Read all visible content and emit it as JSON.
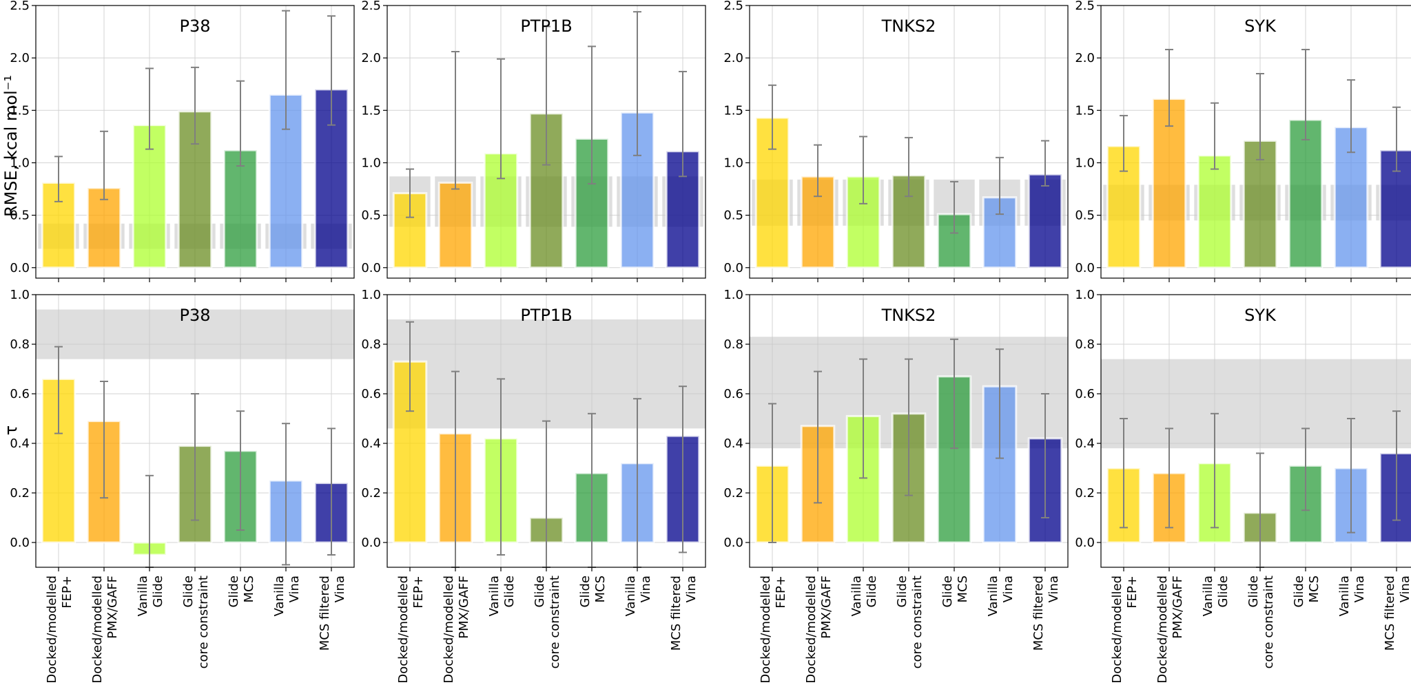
{
  "figure": {
    "ylabel_top": "RMSE, kcal mol⁻¹",
    "ylabel_bottom": "τ"
  },
  "methods": [
    {
      "line1": "Docked/modelled",
      "line2": "FEP+",
      "color": "#FFD700"
    },
    {
      "line1": "Docked/modelled",
      "line2": "PMX/GAFF",
      "color": "#FFA500"
    },
    {
      "line1": "Vanilla",
      "line2": "Glide",
      "color": "#ADFF2F"
    },
    {
      "line1": "Glide",
      "line2": "core constraint",
      "color": "#6B8E23"
    },
    {
      "line1": "Glide",
      "line2": "MCS",
      "color": "#2E9E3E"
    },
    {
      "line1": "Vanilla",
      "line2": "Vina",
      "color": "#6495ED"
    },
    {
      "line1": "MCS filtered",
      "line2": "Vina",
      "color": "#00008B"
    }
  ],
  "chart_data": [
    {
      "type": "bar",
      "row": "rmse",
      "title": "P38",
      "ylabel": "RMSE, kcal mol⁻¹",
      "ylim": [
        -0.1,
        2.5
      ],
      "yticks": [
        "0.0",
        "0.5",
        "1.0",
        "1.5",
        "2.0",
        "2.5"
      ],
      "values": [
        0.81,
        0.76,
        1.36,
        1.49,
        1.12,
        1.65,
        1.7
      ],
      "err_low": [
        0.63,
        0.65,
        1.13,
        1.18,
        0.97,
        1.32,
        1.36
      ],
      "err_high": [
        1.06,
        1.3,
        1.9,
        1.91,
        1.78,
        2.45,
        2.4
      ],
      "band": [
        0.18,
        0.42
      ],
      "grid": true
    },
    {
      "type": "bar",
      "row": "rmse",
      "title": "PTP1B",
      "ylabel": "",
      "ylim": [
        -0.1,
        2.5
      ],
      "yticks": [
        "0.0",
        "0.5",
        "1.0",
        "1.5",
        "2.0",
        "2.5"
      ],
      "values": [
        0.71,
        0.81,
        1.09,
        1.47,
        1.23,
        1.48,
        1.11
      ],
      "err_low": [
        0.48,
        0.75,
        0.85,
        0.98,
        0.8,
        1.07,
        0.87
      ],
      "err_high": [
        0.94,
        2.06,
        1.99,
        2.3,
        2.11,
        2.44,
        1.87
      ],
      "band": [
        0.39,
        0.87
      ],
      "grid": true
    },
    {
      "type": "bar",
      "row": "rmse",
      "title": "TNKS2",
      "ylabel": "",
      "ylim": [
        -0.1,
        2.5
      ],
      "yticks": [
        "0.0",
        "0.5",
        "1.0",
        "1.5",
        "2.0",
        "2.5"
      ],
      "values": [
        1.43,
        0.87,
        0.87,
        0.88,
        0.51,
        0.67,
        0.89
      ],
      "err_low": [
        1.13,
        0.68,
        0.61,
        0.68,
        0.33,
        0.51,
        0.78
      ],
      "err_high": [
        1.74,
        1.17,
        1.25,
        1.24,
        0.82,
        1.05,
        1.21
      ],
      "band": [
        0.4,
        0.84
      ],
      "grid": true
    },
    {
      "type": "bar",
      "row": "rmse",
      "title": "SYK",
      "ylabel": "",
      "ylim": [
        -0.1,
        2.5
      ],
      "yticks": [
        "0.0",
        "0.5",
        "1.0",
        "1.5",
        "2.0",
        "2.5"
      ],
      "values": [
        1.16,
        1.61,
        1.07,
        1.21,
        1.41,
        1.34,
        1.12
      ],
      "err_low": [
        0.92,
        1.35,
        0.94,
        1.03,
        1.22,
        1.1,
        0.92
      ],
      "err_high": [
        1.45,
        2.08,
        1.57,
        1.85,
        2.08,
        1.79,
        1.53
      ],
      "band": [
        0.45,
        0.79
      ],
      "grid": true
    },
    {
      "type": "bar",
      "row": "tau",
      "title": "P38",
      "ylabel": "τ",
      "ylim": [
        -0.1,
        1.0
      ],
      "yticks": [
        "0.0",
        "0.2",
        "0.4",
        "0.6",
        "0.8",
        "1.0"
      ],
      "values": [
        0.66,
        0.49,
        -0.05,
        0.39,
        0.37,
        0.25,
        0.24
      ],
      "err_low": [
        0.44,
        0.18,
        -0.1,
        0.09,
        0.05,
        -0.09,
        -0.05
      ],
      "err_high": [
        0.79,
        0.65,
        0.27,
        0.6,
        0.53,
        0.48,
        0.46
      ],
      "band": [
        0.74,
        0.94
      ],
      "grid": true
    },
    {
      "type": "bar",
      "row": "tau",
      "title": "PTP1B",
      "ylabel": "",
      "ylim": [
        -0.1,
        1.0
      ],
      "yticks": [
        "0.0",
        "0.2",
        "0.4",
        "0.6",
        "0.8",
        "1.0"
      ],
      "values": [
        0.73,
        0.44,
        0.42,
        0.1,
        0.28,
        0.32,
        0.43
      ],
      "err_low": [
        0.53,
        -0.1,
        -0.05,
        -0.1,
        -0.1,
        -0.1,
        -0.04
      ],
      "err_high": [
        0.89,
        0.69,
        0.66,
        0.49,
        0.52,
        0.58,
        0.63
      ],
      "band": [
        0.46,
        0.9
      ],
      "grid": true
    },
    {
      "type": "bar",
      "row": "tau",
      "title": "TNKS2",
      "ylabel": "",
      "ylim": [
        -0.1,
        1.0
      ],
      "yticks": [
        "0.0",
        "0.2",
        "0.4",
        "0.6",
        "0.8",
        "1.0"
      ],
      "values": [
        0.31,
        0.47,
        0.51,
        0.52,
        0.67,
        0.63,
        0.42
      ],
      "err_low": [
        0.0,
        0.16,
        0.26,
        0.19,
        0.38,
        0.34,
        0.1
      ],
      "err_high": [
        0.56,
        0.69,
        0.74,
        0.74,
        0.82,
        0.78,
        0.6
      ],
      "band": [
        0.38,
        0.83
      ],
      "grid": true
    },
    {
      "type": "bar",
      "row": "tau",
      "title": "SYK",
      "ylabel": "",
      "ylim": [
        -0.1,
        1.0
      ],
      "yticks": [
        "0.0",
        "0.2",
        "0.4",
        "0.6",
        "0.8",
        "1.0"
      ],
      "values": [
        0.3,
        0.28,
        0.32,
        0.12,
        0.31,
        0.3,
        0.36
      ],
      "err_low": [
        0.06,
        0.06,
        0.06,
        -0.1,
        0.13,
        0.04,
        0.09
      ],
      "err_high": [
        0.5,
        0.46,
        0.52,
        0.36,
        0.46,
        0.5,
        0.53
      ],
      "band": [
        0.38,
        0.74
      ],
      "grid": true
    }
  ]
}
